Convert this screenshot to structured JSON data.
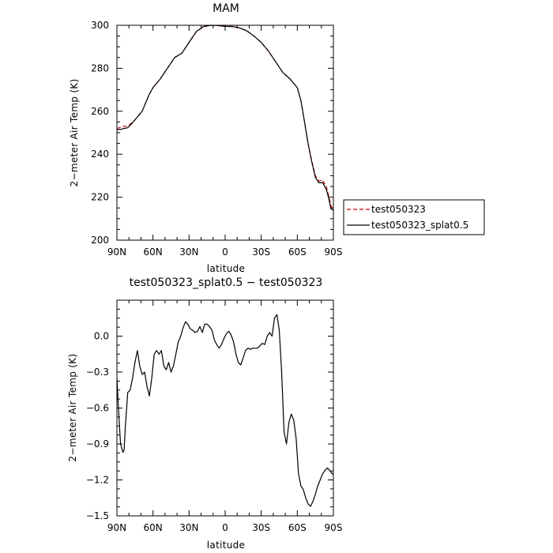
{
  "chart_data": [
    {
      "type": "line",
      "title": "MAM",
      "xlabel": "latitude",
      "ylabel": "2−meter Air Temp (K)",
      "xlim": [
        90,
        -90
      ],
      "ylim": [
        200,
        300
      ],
      "x_ticks": [
        90,
        60,
        30,
        0,
        -30,
        -60,
        -90
      ],
      "x_tick_labels": [
        "90N",
        "60N",
        "30N",
        "0",
        "30S",
        "60S",
        "90S"
      ],
      "y_ticks": [
        200,
        220,
        240,
        260,
        280,
        300
      ],
      "y_tick_labels": [
        "200",
        "220",
        "240",
        "260",
        "280",
        "300"
      ],
      "legend_position": "right",
      "series": [
        {
          "name": "test050323",
          "color": "#cc0000",
          "dash": "dashed",
          "x": [
            90,
            87,
            84,
            81,
            78,
            75,
            72,
            69,
            66,
            63,
            60,
            54,
            48,
            42,
            36,
            30,
            24,
            18,
            12,
            6,
            0,
            -6,
            -12,
            -18,
            -24,
            -30,
            -36,
            -42,
            -48,
            -54,
            -60,
            -63,
            -66,
            -69,
            -72,
            -75,
            -78,
            -81,
            -84,
            -86,
            -88,
            -90
          ],
          "values": [
            252,
            252.5,
            253,
            253,
            254.5,
            256,
            258,
            260,
            264,
            268,
            271,
            275,
            280,
            285,
            287,
            292,
            297,
            299.3,
            300,
            299.8,
            299.5,
            299.5,
            298.8,
            297.5,
            295,
            292,
            288,
            283,
            278,
            275,
            271,
            265,
            255,
            245,
            237,
            230,
            227.5,
            228,
            225,
            221,
            216,
            214
          ]
        },
        {
          "name": "test050323_splat0.5",
          "color": "#000000",
          "dash": "solid",
          "x": [
            90,
            87,
            84,
            81,
            78,
            75,
            72,
            69,
            66,
            63,
            60,
            54,
            48,
            42,
            36,
            30,
            24,
            18,
            12,
            6,
            0,
            -6,
            -12,
            -18,
            -24,
            -30,
            -36,
            -42,
            -48,
            -54,
            -60,
            -63,
            -66,
            -69,
            -72,
            -75,
            -78,
            -81,
            -84,
            -86,
            -88,
            -90
          ],
          "values": [
            251.5,
            251.5,
            252,
            252.3,
            254,
            256,
            258,
            260,
            264,
            268,
            271,
            275,
            280,
            285,
            287,
            292.1,
            297.1,
            299.4,
            300,
            299.9,
            299.5,
            299.4,
            298.8,
            297.4,
            295,
            292,
            288,
            283,
            278,
            275,
            271,
            265,
            255,
            244.8,
            236.5,
            229.2,
            226.7,
            226.8,
            223.8,
            219.8,
            214.5,
            214
          ]
        }
      ]
    },
    {
      "type": "line",
      "title": "test050323_splat0.5 − test050323",
      "xlabel": "latitude",
      "ylabel": "2−meter Air Temp (K)",
      "xlim": [
        90,
        -90
      ],
      "ylim": [
        -1.5,
        0.3
      ],
      "x_ticks": [
        90,
        60,
        30,
        0,
        -30,
        -60,
        -90
      ],
      "x_tick_labels": [
        "90N",
        "60N",
        "30N",
        "0",
        "30S",
        "60S",
        "90S"
      ],
      "y_ticks": [
        -1.5,
        -1.2,
        -0.9,
        -0.6,
        -0.3,
        0.0
      ],
      "y_tick_labels": [
        "−1.5",
        "−1.2",
        "−0.9",
        "−0.6",
        "−0.3",
        "0.0"
      ],
      "series": [
        {
          "name": "",
          "color": "#000000",
          "dash": "solid",
          "x": [
            90,
            89,
            87,
            85,
            84,
            83,
            81,
            79,
            77,
            75,
            73,
            71,
            69,
            67,
            65,
            63,
            61,
            59,
            57,
            55,
            53,
            51,
            49,
            47,
            45,
            43,
            41,
            39,
            37,
            35,
            33,
            31,
            29,
            27,
            25,
            23,
            21,
            19,
            17,
            15,
            13,
            11,
            9,
            7,
            5,
            3,
            1,
            -1,
            -3,
            -5,
            -7,
            -9,
            -11,
            -13,
            -15,
            -17,
            -19,
            -21,
            -23,
            -25,
            -27,
            -29,
            -31,
            -33,
            -35,
            -37,
            -39,
            -41,
            -43,
            -45,
            -47,
            -49,
            -51,
            -53,
            -55,
            -57,
            -59,
            -61,
            -63,
            -65,
            -67,
            -69,
            -71,
            -73,
            -75,
            -77,
            -79,
            -81,
            -83,
            -85,
            -87,
            -89,
            -90
          ],
          "values": [
            -0.35,
            -0.55,
            -0.9,
            -0.97,
            -0.95,
            -0.75,
            -0.47,
            -0.45,
            -0.35,
            -0.22,
            -0.12,
            -0.25,
            -0.32,
            -0.3,
            -0.42,
            -0.5,
            -0.35,
            -0.15,
            -0.12,
            -0.15,
            -0.12,
            -0.25,
            -0.28,
            -0.22,
            -0.3,
            -0.25,
            -0.15,
            -0.05,
            0.0,
            0.07,
            0.12,
            0.1,
            0.06,
            0.05,
            0.03,
            0.04,
            0.08,
            0.03,
            0.1,
            0.1,
            0.08,
            0.05,
            -0.03,
            -0.07,
            -0.1,
            -0.07,
            -0.02,
            0.02,
            0.04,
            0.01,
            -0.05,
            -0.15,
            -0.22,
            -0.24,
            -0.18,
            -0.12,
            -0.1,
            -0.11,
            -0.1,
            -0.1,
            -0.1,
            -0.08,
            -0.06,
            -0.07,
            0.0,
            0.03,
            0.0,
            0.15,
            0.18,
            0.05,
            -0.3,
            -0.8,
            -0.9,
            -0.72,
            -0.65,
            -0.7,
            -0.85,
            -1.15,
            -1.25,
            -1.28,
            -1.35,
            -1.4,
            -1.42,
            -1.38,
            -1.32,
            -1.25,
            -1.2,
            -1.15,
            -1.12,
            -1.1,
            -1.12,
            -1.15,
            -1.15
          ]
        }
      ]
    }
  ]
}
